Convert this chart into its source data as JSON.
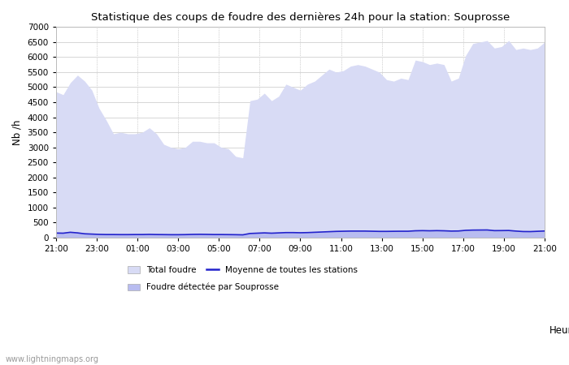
{
  "title": "Statistique des coups de foudre des dernières 24h pour la station: Souprosse",
  "xlabel": "Heure",
  "ylabel": "Nb /h",
  "watermark": "www.lightningmaps.org",
  "ylim": [
    0,
    7000
  ],
  "yticks": [
    0,
    500,
    1000,
    1500,
    2000,
    2500,
    3000,
    3500,
    4000,
    4500,
    5000,
    5500,
    6000,
    6500,
    7000
  ],
  "xtick_labels": [
    "21:00",
    "23:00",
    "01:00",
    "03:00",
    "05:00",
    "07:00",
    "09:00",
    "11:00",
    "13:00",
    "15:00",
    "17:00",
    "19:00",
    "21:00"
  ],
  "bg_color": "#ffffff",
  "fill_total_color": "#d8dbf5",
  "fill_local_color": "#b8bcf0",
  "line_moyenne_color": "#2222cc",
  "total_foudre": [
    4850,
    4750,
    5150,
    5400,
    5200,
    4900,
    4300,
    3900,
    3450,
    3500,
    3450,
    3450,
    3500,
    3650,
    3450,
    3100,
    3000,
    2950,
    3000,
    3200,
    3200,
    3150,
    3150,
    3000,
    2950,
    2700,
    2650,
    4550,
    4600,
    4800,
    4550,
    4700,
    5100,
    5000,
    4900,
    5100,
    5200,
    5400,
    5600,
    5500,
    5550,
    5700,
    5750,
    5700,
    5600,
    5500,
    5250,
    5200,
    5300,
    5250,
    5900,
    5850,
    5750,
    5800,
    5750,
    5200,
    5300,
    6050,
    6450,
    6500,
    6550,
    6300,
    6350,
    6550,
    6250,
    6300,
    6250,
    6300,
    6500
  ],
  "local_foudre": [
    150,
    145,
    175,
    155,
    125,
    115,
    105,
    100,
    100,
    98,
    98,
    100,
    100,
    105,
    100,
    98,
    95,
    95,
    98,
    105,
    108,
    105,
    100,
    100,
    98,
    95,
    90,
    135,
    145,
    155,
    145,
    155,
    165,
    165,
    160,
    165,
    175,
    185,
    195,
    205,
    210,
    215,
    215,
    215,
    210,
    205,
    205,
    208,
    210,
    210,
    225,
    230,
    225,
    230,
    225,
    215,
    218,
    240,
    248,
    250,
    252,
    230,
    232,
    235,
    215,
    200,
    198,
    208,
    218
  ],
  "moyenne_stations": [
    150,
    145,
    175,
    155,
    125,
    115,
    105,
    100,
    100,
    98,
    98,
    100,
    100,
    105,
    100,
    98,
    95,
    95,
    98,
    105,
    108,
    105,
    100,
    100,
    98,
    95,
    90,
    135,
    145,
    155,
    145,
    155,
    165,
    165,
    160,
    165,
    175,
    185,
    195,
    205,
    210,
    215,
    215,
    215,
    210,
    205,
    205,
    208,
    210,
    210,
    225,
    230,
    225,
    230,
    225,
    215,
    218,
    240,
    248,
    250,
    252,
    230,
    232,
    235,
    215,
    200,
    198,
    208,
    218
  ]
}
